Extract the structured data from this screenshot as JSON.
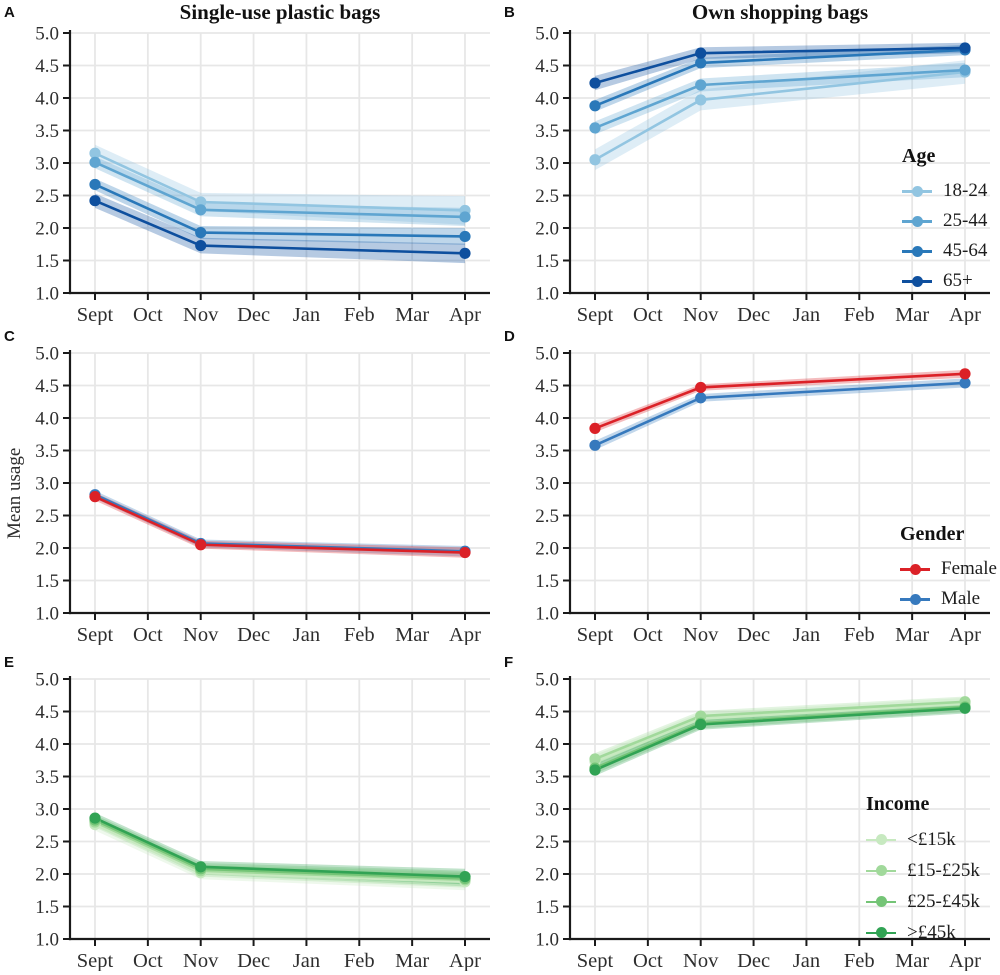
{
  "figure": {
    "ylabel": "Mean usage",
    "column_titles": [
      "Single-use plastic bags",
      "Own shopping bags"
    ],
    "colors": {
      "grid": "#E7E7E7",
      "axis": "#1A1A1A",
      "tick_label": "#2E2E2E"
    }
  },
  "chart_data": [
    {
      "panel": "A",
      "type": "line",
      "title": "Single-use plastic bags",
      "group": "Age",
      "row": 0,
      "col": 0,
      "legend_visible": false,
      "draw_reverse": false,
      "x_categories": [
        "Sept",
        "Oct",
        "Nov",
        "Dec",
        "Jan",
        "Feb",
        "Mar",
        "Apr"
      ],
      "data_points_at": [
        "Sept",
        "Nov",
        "Apr"
      ],
      "ylim": [
        1.0,
        5.0
      ],
      "ytick_step": 0.5,
      "grid": true,
      "series": [
        {
          "name": "18-24",
          "color": "#92C5E1",
          "values": [
            3.15,
            2.4,
            2.27
          ],
          "ci": [
            0.13,
            0.14,
            0.22
          ]
        },
        {
          "name": "25-44",
          "color": "#5FA5D1",
          "values": [
            3.01,
            2.28,
            2.17
          ],
          "ci": [
            0.09,
            0.1,
            0.14
          ]
        },
        {
          "name": "45-64",
          "color": "#2978B9",
          "values": [
            2.67,
            1.93,
            1.87
          ],
          "ci": [
            0.09,
            0.1,
            0.13
          ]
        },
        {
          "name": "65+",
          "color": "#0E4F9E",
          "values": [
            2.42,
            1.73,
            1.61
          ],
          "ci": [
            0.11,
            0.12,
            0.15
          ]
        }
      ]
    },
    {
      "panel": "B",
      "type": "line",
      "title": "Own shopping bags",
      "group": "Age",
      "row": 0,
      "col": 1,
      "legend_visible": true,
      "draw_reverse": false,
      "x_categories": [
        "Sept",
        "Oct",
        "Nov",
        "Dec",
        "Jan",
        "Feb",
        "Mar",
        "Apr"
      ],
      "data_points_at": [
        "Sept",
        "Nov",
        "Apr"
      ],
      "ylim": [
        1.0,
        5.0
      ],
      "ytick_step": 0.5,
      "grid": true,
      "series": [
        {
          "name": "18-24",
          "color": "#92C5E1",
          "values": [
            3.05,
            3.97,
            4.4
          ],
          "ci": [
            0.16,
            0.16,
            0.18
          ]
        },
        {
          "name": "25-44",
          "color": "#5FA5D1",
          "values": [
            3.54,
            4.2,
            4.43
          ],
          "ci": [
            0.1,
            0.1,
            0.11
          ]
        },
        {
          "name": "45-64",
          "color": "#2978B9",
          "values": [
            3.88,
            4.54,
            4.74
          ],
          "ci": [
            0.09,
            0.08,
            0.08
          ]
        },
        {
          "name": "65+",
          "color": "#0E4F9E",
          "values": [
            4.23,
            4.69,
            4.77
          ],
          "ci": [
            0.11,
            0.09,
            0.08
          ]
        }
      ]
    },
    {
      "panel": "C",
      "type": "line",
      "title": "",
      "group": "Gender",
      "row": 1,
      "col": 0,
      "legend_visible": false,
      "draw_reverse": true,
      "x_categories": [
        "Sept",
        "Oct",
        "Nov",
        "Dec",
        "Jan",
        "Feb",
        "Mar",
        "Apr"
      ],
      "data_points_at": [
        "Sept",
        "Nov",
        "Apr"
      ],
      "ylim": [
        1.0,
        5.0
      ],
      "ytick_step": 0.5,
      "grid": true,
      "series": [
        {
          "name": "Female",
          "color": "#DB2127",
          "values": [
            2.79,
            2.05,
            1.93
          ],
          "ci": [
            0.06,
            0.06,
            0.08
          ]
        },
        {
          "name": "Male",
          "color": "#3679BD",
          "values": [
            2.82,
            2.07,
            1.95
          ],
          "ci": [
            0.06,
            0.06,
            0.08
          ]
        }
      ]
    },
    {
      "panel": "D",
      "type": "line",
      "title": "",
      "group": "Gender",
      "row": 1,
      "col": 1,
      "legend_visible": true,
      "draw_reverse": true,
      "x_categories": [
        "Sept",
        "Oct",
        "Nov",
        "Dec",
        "Jan",
        "Feb",
        "Mar",
        "Apr"
      ],
      "data_points_at": [
        "Sept",
        "Nov",
        "Apr"
      ],
      "ylim": [
        1.0,
        5.0
      ],
      "ytick_step": 0.5,
      "grid": true,
      "series": [
        {
          "name": "Female",
          "color": "#DB2127",
          "values": [
            3.84,
            4.47,
            4.68
          ],
          "ci": [
            0.06,
            0.05,
            0.06
          ]
        },
        {
          "name": "Male",
          "color": "#3679BD",
          "values": [
            3.58,
            4.31,
            4.54
          ],
          "ci": [
            0.07,
            0.06,
            0.07
          ]
        }
      ]
    },
    {
      "panel": "E",
      "type": "line",
      "title": "",
      "group": "Income",
      "row": 2,
      "col": 0,
      "legend_visible": false,
      "draw_reverse": false,
      "x_categories": [
        "Sept",
        "Oct",
        "Nov",
        "Dec",
        "Jan",
        "Feb",
        "Mar",
        "Apr"
      ],
      "data_points_at": [
        "Sept",
        "Nov",
        "Apr"
      ],
      "ylim": [
        1.0,
        5.0
      ],
      "ytick_step": 0.5,
      "grid": true,
      "series": [
        {
          "name": "<£15k",
          "color": "#C7E9C0",
          "values": [
            2.76,
            2.02,
            1.88
          ],
          "ci": [
            0.09,
            0.1,
            0.13
          ]
        },
        {
          "name": "£15-£25k",
          "color": "#A1D99B",
          "values": [
            2.8,
            2.05,
            1.91
          ],
          "ci": [
            0.08,
            0.09,
            0.12
          ]
        },
        {
          "name": "£25-£45k",
          "color": "#74C476",
          "values": [
            2.83,
            2.08,
            1.93
          ],
          "ci": [
            0.08,
            0.09,
            0.12
          ]
        },
        {
          "name": ">£45k",
          "color": "#31A354",
          "values": [
            2.86,
            2.11,
            1.96
          ],
          "ci": [
            0.08,
            0.09,
            0.12
          ]
        }
      ]
    },
    {
      "panel": "F",
      "type": "line",
      "title": "",
      "group": "Income",
      "row": 2,
      "col": 1,
      "legend_visible": true,
      "draw_reverse": false,
      "x_categories": [
        "Sept",
        "Oct",
        "Nov",
        "Dec",
        "Jan",
        "Feb",
        "Mar",
        "Apr"
      ],
      "data_points_at": [
        "Sept",
        "Nov",
        "Apr"
      ],
      "ylim": [
        1.0,
        5.0
      ],
      "ytick_step": 0.5,
      "grid": true,
      "series": [
        {
          "name": "<£15k",
          "color": "#C7E9C0",
          "values": [
            3.73,
            4.39,
            4.62
          ],
          "ci": [
            0.1,
            0.09,
            0.09
          ]
        },
        {
          "name": "£15-£25k",
          "color": "#A1D99B",
          "values": [
            3.77,
            4.43,
            4.65
          ],
          "ci": [
            0.09,
            0.08,
            0.08
          ]
        },
        {
          "name": "£25-£45k",
          "color": "#74C476",
          "values": [
            3.63,
            4.32,
            4.57
          ],
          "ci": [
            0.09,
            0.08,
            0.08
          ]
        },
        {
          "name": ">£45k",
          "color": "#31A354",
          "values": [
            3.6,
            4.3,
            4.55
          ],
          "ci": [
            0.09,
            0.08,
            0.08
          ]
        }
      ]
    }
  ]
}
